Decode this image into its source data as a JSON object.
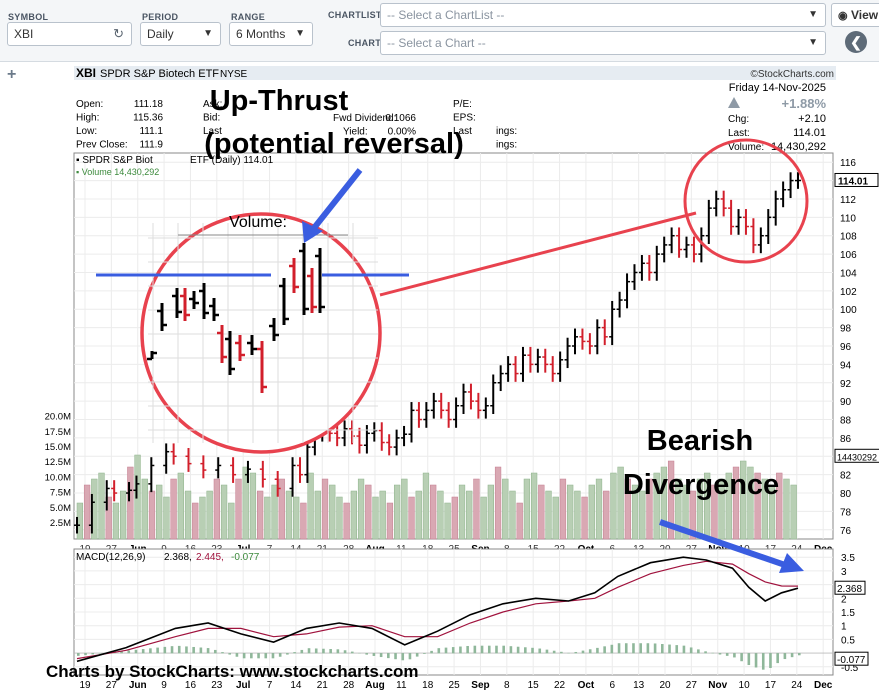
{
  "toolbar": {
    "symbol_label": "SYMBOL",
    "symbol_value": "XBI",
    "period_label": "PERIOD",
    "period_value": "Daily",
    "range_label": "RANGE",
    "range_value": "6 Months",
    "chartlist_label": "CHARTLIST",
    "chartlist_placeholder": "-- Select a ChartList --",
    "chart_label": "CHART",
    "chart_placeholder": "-- Select a Chart --",
    "view_label": "View"
  },
  "header": {
    "ticker": "XBI",
    "name": "SPDR S&P Biotech ETF",
    "exchange": "NYSE",
    "credit": "©StockCharts.com",
    "date": "Friday 14-Nov-2025",
    "pct_change": "+1.88%",
    "chg_label": "Chg:",
    "chg_value": "+2.10",
    "last_label": "Last:",
    "last_value": "114.01",
    "volume_label": "Volume:",
    "volume_value": "14,430,292"
  },
  "quote_table": [
    {
      "label": "Open:",
      "value": "111.18"
    },
    {
      "label": "High:",
      "value": "115.36"
    },
    {
      "label": "Low:",
      "value": "111.1"
    },
    {
      "label": "Prev Close:",
      "value": "111.9"
    }
  ],
  "quote_mid": [
    {
      "label": "Ask:",
      "value": ""
    },
    {
      "label": "Bid:",
      "value": ""
    },
    {
      "label": "Last",
      "value": ""
    }
  ],
  "quote_mid2": [
    {
      "label": "Fwd Dividend:",
      "value": "0.1066"
    },
    {
      "label": "Yield:",
      "value": "0.00%"
    }
  ],
  "quote_right": [
    {
      "label": "P/E:"
    },
    {
      "label": "EPS:"
    },
    {
      "label": "Last",
      "suffix": "ings:"
    },
    {
      "label": "",
      "suffix": "ings:"
    }
  ],
  "legend": {
    "price": "▪ SPDR S&P Biot",
    "price_detail": "ETF (Daily) 114.01",
    "volume": "▪ Volume 14,430,292"
  },
  "annotations": {
    "upthrust_line1": "Up-Thrust",
    "upthrust_line2": "(potential reversal)",
    "bearish_line1": "Bearish",
    "bearish_line2": "Divergence",
    "zoom_volume_label": "Volume:"
  },
  "macd_label": "MACD(12,26,9)",
  "macd_values": {
    "macd": "2.368",
    "signal": "2.445",
    "hist": "-0.077"
  },
  "footer_credit": "Charts by StockCharts:  www.stockcharts.com",
  "chart_data": {
    "type": "ohlc",
    "price_axis": {
      "min": 75,
      "max": 117,
      "ticks": [
        76,
        78,
        80,
        82,
        84,
        86,
        88,
        90,
        92,
        94,
        96,
        98,
        100,
        102,
        104,
        106,
        108,
        110,
        112,
        114,
        116
      ]
    },
    "last_price_label": "114.01",
    "volume_axis_label": "14430292",
    "volume_ticks": [
      "2.5M",
      "5.0M",
      "7.5M",
      "10.0M",
      "12.5M",
      "15.0M",
      "17.5M",
      "20.0M"
    ],
    "x_ticks": [
      "19",
      "27",
      "Jun",
      "9",
      "16",
      "23",
      "Jul",
      "7",
      "14",
      "21",
      "28",
      "Aug",
      "11",
      "18",
      "25",
      "Sep",
      "8",
      "15",
      "22",
      "Oct",
      "6",
      "13",
      "20",
      "27",
      "Nov",
      "10",
      "17",
      "24",
      "Dec"
    ],
    "close_path": [
      [
        0,
        76.5
      ],
      [
        4,
        79
      ],
      [
        8,
        80.5
      ],
      [
        10,
        80
      ],
      [
        14,
        80.3
      ],
      [
        16,
        81
      ],
      [
        20,
        83
      ],
      [
        24,
        84.5
      ],
      [
        26,
        84
      ],
      [
        30,
        83.2
      ],
      [
        34,
        82.5
      ],
      [
        38,
        83
      ],
      [
        42,
        82
      ],
      [
        46,
        82.6
      ],
      [
        50,
        81.5
      ],
      [
        54,
        80.5
      ],
      [
        58,
        83
      ],
      [
        60,
        82
      ],
      [
        62,
        85
      ],
      [
        64,
        86.5
      ],
      [
        66,
        86.8
      ],
      [
        68,
        86.5
      ],
      [
        70,
        86
      ],
      [
        72,
        87
      ],
      [
        74,
        86.2
      ],
      [
        76,
        85.2
      ],
      [
        78,
        86.5
      ],
      [
        80,
        86.8
      ],
      [
        82,
        85.5
      ],
      [
        84,
        85
      ],
      [
        86,
        86
      ],
      [
        88,
        86.4
      ],
      [
        90,
        89
      ],
      [
        92,
        88
      ],
      [
        94,
        89
      ],
      [
        96,
        90
      ],
      [
        98,
        89
      ],
      [
        100,
        88
      ],
      [
        102,
        89.5
      ],
      [
        104,
        91
      ],
      [
        106,
        90
      ],
      [
        108,
        89
      ],
      [
        110,
        89.5
      ],
      [
        112,
        92
      ],
      [
        114,
        93
      ],
      [
        116,
        94
      ],
      [
        118,
        93
      ],
      [
        120,
        95
      ],
      [
        122,
        94
      ],
      [
        124,
        94.8
      ],
      [
        126,
        94
      ],
      [
        128,
        93
      ],
      [
        130,
        94.5
      ],
      [
        132,
        96
      ],
      [
        134,
        97
      ],
      [
        136,
        96.5
      ],
      [
        138,
        96
      ],
      [
        140,
        98
      ],
      [
        142,
        97
      ],
      [
        144,
        100
      ],
      [
        146,
        101
      ],
      [
        148,
        103
      ],
      [
        150,
        104
      ],
      [
        152,
        105
      ],
      [
        154,
        104
      ],
      [
        156,
        106
      ],
      [
        158,
        107
      ],
      [
        160,
        108
      ],
      [
        162,
        106.5
      ],
      [
        164,
        107
      ],
      [
        166,
        106
      ],
      [
        168,
        108
      ],
      [
        170,
        111
      ],
      [
        172,
        112
      ],
      [
        174,
        111
      ],
      [
        176,
        109
      ],
      [
        178,
        110
      ],
      [
        180,
        109
      ],
      [
        182,
        107
      ],
      [
        184,
        108
      ],
      [
        186,
        110
      ],
      [
        188,
        112
      ],
      [
        190,
        113
      ],
      [
        192,
        114
      ],
      [
        194,
        114.01
      ]
    ],
    "candle_span": 194,
    "volume_estimate_pct": [
      0.3,
      0.45,
      0.5,
      0.55,
      0.35,
      0.3,
      0.4,
      0.6,
      0.7,
      0.5,
      0.4,
      0.45,
      0.35,
      0.5,
      0.55,
      0.4,
      0.3,
      0.35,
      0.4,
      0.5,
      0.45,
      0.3,
      0.5,
      0.6,
      0.55,
      0.4,
      0.35,
      0.45,
      0.5,
      0.4,
      0.35,
      0.3,
      0.55,
      0.4,
      0.5,
      0.45,
      0.35,
      0.3,
      0.4,
      0.5,
      0.45,
      0.35,
      0.4,
      0.3,
      0.45,
      0.5,
      0.35,
      0.4,
      0.55,
      0.45,
      0.4,
      0.3,
      0.35,
      0.45,
      0.4,
      0.5,
      0.35,
      0.45,
      0.6,
      0.5,
      0.4,
      0.3,
      0.5,
      0.55,
      0.45,
      0.4,
      0.35,
      0.5,
      0.45,
      0.4,
      0.35,
      0.45,
      0.5,
      0.4,
      0.55,
      0.6,
      0.5,
      0.45,
      0.4,
      0.5,
      0.55,
      0.6,
      0.65,
      0.5,
      0.45,
      0.4,
      0.5,
      0.55,
      0.45,
      0.5,
      0.55,
      0.6,
      0.65,
      0.6,
      0.55,
      0.5,
      0.45,
      0.55,
      0.5,
      0.45
    ],
    "macd_axis": {
      "min": -0.8,
      "max": 3.8,
      "ticks": [
        -0.5,
        0.5,
        1.0,
        1.5,
        2.0,
        2.5,
        3.0,
        3.5
      ]
    },
    "macd_line": [
      [
        0,
        -0.3
      ],
      [
        15,
        0.2
      ],
      [
        30,
        0.9
      ],
      [
        40,
        1.1
      ],
      [
        50,
        0.7
      ],
      [
        60,
        0.4
      ],
      [
        70,
        0.9
      ],
      [
        80,
        1.1
      ],
      [
        90,
        0.9
      ],
      [
        100,
        0.3
      ],
      [
        110,
        0.8
      ],
      [
        120,
        1.4
      ],
      [
        130,
        1.8
      ],
      [
        140,
        2.0
      ],
      [
        150,
        1.9
      ],
      [
        158,
        2.2
      ],
      [
        165,
        2.8
      ],
      [
        175,
        3.3
      ],
      [
        185,
        3.5
      ],
      [
        192,
        3.4
      ],
      [
        200,
        3.1
      ],
      [
        205,
        2.4
      ],
      [
        210,
        1.9
      ],
      [
        215,
        2.2
      ],
      [
        220,
        2.368
      ]
    ],
    "signal_line": [
      [
        0,
        -0.2
      ],
      [
        15,
        0.1
      ],
      [
        30,
        0.6
      ],
      [
        40,
        0.9
      ],
      [
        50,
        0.9
      ],
      [
        60,
        0.6
      ],
      [
        70,
        0.7
      ],
      [
        80,
        0.95
      ],
      [
        90,
        1.0
      ],
      [
        100,
        0.6
      ],
      [
        110,
        0.6
      ],
      [
        120,
        1.1
      ],
      [
        130,
        1.5
      ],
      [
        140,
        1.8
      ],
      [
        150,
        1.9
      ],
      [
        158,
        2.0
      ],
      [
        165,
        2.4
      ],
      [
        175,
        2.9
      ],
      [
        185,
        3.2
      ],
      [
        192,
        3.35
      ],
      [
        200,
        3.25
      ],
      [
        205,
        2.9
      ],
      [
        210,
        2.6
      ],
      [
        215,
        2.45
      ],
      [
        220,
        2.445
      ]
    ],
    "macd_last": "2.368",
    "macd_hist_last": "-0.077"
  }
}
